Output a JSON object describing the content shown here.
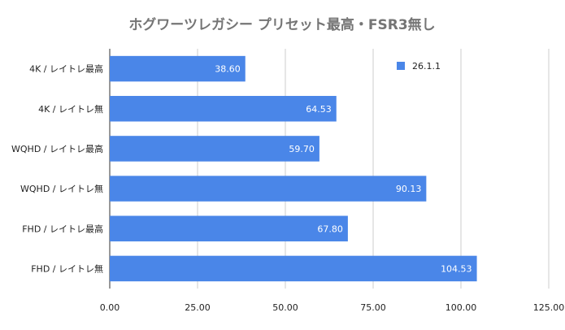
{
  "chart_data": {
    "type": "bar",
    "orientation": "horizontal",
    "title": "ホグワーツレガシー プリセット最高・FSR3無し",
    "categories": [
      "4K / レイトレ最高",
      "4K / レイトレ無",
      "WQHD / レイトレ最高",
      "WQHD / レイトレ無",
      "FHD / レイトレ最高",
      "FHD / レイトレ無"
    ],
    "series": [
      {
        "name": "26.1.1",
        "values": [
          38.6,
          64.53,
          59.7,
          90.13,
          67.8,
          104.53
        ]
      }
    ],
    "data_labels": [
      "38.60",
      "64.53",
      "59.70",
      "90.13",
      "67.80",
      "104.53"
    ],
    "x_ticks": [
      "0.00",
      "25.00",
      "50.00",
      "75.00",
      "100.00",
      "125.00"
    ],
    "xlim": [
      0,
      125
    ],
    "xlabel": "",
    "ylabel": "",
    "grid": true,
    "legend_position": "top-right",
    "colors": {
      "bar": "#4a86e8",
      "grid": "#cccccc",
      "axis": "#333333"
    }
  }
}
